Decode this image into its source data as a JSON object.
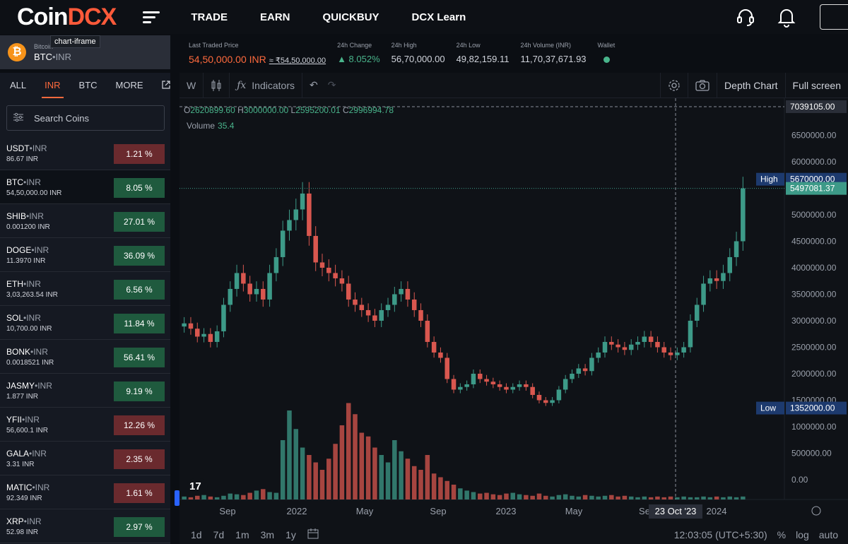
{
  "brand": {
    "logo_a": "Coin",
    "logo_b": "DCX",
    "accent": "#ff5a3a"
  },
  "nav": {
    "items": [
      "TRADE",
      "EARN",
      "QUICKBUY",
      "DCX Learn"
    ]
  },
  "pair": {
    "sub": "Bitcoin",
    "base": "BTC",
    "quote": "INR",
    "tooltip": "chart-iframe"
  },
  "ticker": {
    "ltp_label": "Last Traded Price",
    "ltp": "54,50,000.00 INR",
    "ltp_approx": "≈ ₹54,50,000.00",
    "change_label": "24h Change",
    "change": "▲ 8.052%",
    "high_label": "24h High",
    "high": "56,70,000.00",
    "low_label": "24h Low",
    "low": "49,82,159.11",
    "volume_label": "24h Volume (INR)",
    "volume": "11,70,37,671.93",
    "wallet_label": "Wallet"
  },
  "sidebar": {
    "tabs": [
      "ALL",
      "INR",
      "BTC",
      "MORE"
    ],
    "search_placeholder": "Search Coins",
    "coins": [
      {
        "base": "USDT",
        "quote": "INR",
        "price": "86.67 INR",
        "change": "1.21 %",
        "dir": "red"
      },
      {
        "base": "BTC",
        "quote": "INR",
        "price": "54,50,000.00 INR",
        "change": "8.05 %",
        "dir": "green"
      },
      {
        "base": "SHIB",
        "quote": "INR",
        "price": "0.001200 INR",
        "change": "27.01 %",
        "dir": "green"
      },
      {
        "base": "DOGE",
        "quote": "INR",
        "price": "11.3970 INR",
        "change": "36.09 %",
        "dir": "green"
      },
      {
        "base": "ETH",
        "quote": "INR",
        "price": "3,03,263.54 INR",
        "change": "6.56 %",
        "dir": "green"
      },
      {
        "base": "SOL",
        "quote": "INR",
        "price": "10,700.00 INR",
        "change": "11.84 %",
        "dir": "green"
      },
      {
        "base": "BONK",
        "quote": "INR",
        "price": "0.0018521 INR",
        "change": "56.41 %",
        "dir": "green"
      },
      {
        "base": "JASMY",
        "quote": "INR",
        "price": "1.877 INR",
        "change": "9.19 %",
        "dir": "green"
      },
      {
        "base": "YFII",
        "quote": "INR",
        "price": "56,600.1 INR",
        "change": "12.26 %",
        "dir": "red"
      },
      {
        "base": "GALA",
        "quote": "INR",
        "price": "3.31 INR",
        "change": "2.35 %",
        "dir": "red"
      },
      {
        "base": "MATIC",
        "quote": "INR",
        "price": "92.349 INR",
        "change": "1.61 %",
        "dir": "red"
      },
      {
        "base": "XRP",
        "quote": "INR",
        "price": "52.98 INR",
        "change": "2.97 %",
        "dir": "green"
      }
    ]
  },
  "toolbar": {
    "interval": "W",
    "indicators": "Indicators",
    "depth": "Depth Chart",
    "fullscreen": "Full screen"
  },
  "legend": {
    "o": "2620899.60",
    "h": "3000000.00",
    "l": "2595200.01",
    "c": "2996994.78",
    "volume_label": "Volume",
    "volume": "35.4"
  },
  "bottom": {
    "ranges": [
      "1d",
      "7d",
      "1m",
      "3m",
      "1y"
    ],
    "time": "12:03:05 (UTC+5:30)",
    "opts": [
      "%",
      "log",
      "auto"
    ]
  },
  "chart_data": {
    "type": "candlestick",
    "y_ticks": [
      "6500000.00",
      "6000000.00",
      "5500000.00",
      "5000000.00",
      "4500000.00",
      "4000000.00",
      "3500000.00",
      "3000000.00",
      "2500000.00",
      "2000000.00",
      "1500000.00",
      "1000000.00",
      "500000.00",
      "0.00"
    ],
    "ylim": [
      0,
      7039105
    ],
    "x_ticks": [
      "Sep",
      "2022",
      "May",
      "Sep",
      "2023",
      "May",
      "Se",
      "2024"
    ],
    "crosshair_price": "7039105.00",
    "crosshair_date": "23 Oct '23",
    "high_label": "High",
    "high_value": "5670000.00",
    "last_value": "5497081.37",
    "low_label": "Low",
    "low_value": "1352000.00",
    "close_series": [
      2950000,
      2850000,
      2700000,
      2750000,
      2600000,
      2800000,
      3300000,
      3600000,
      3900000,
      3700000,
      3500000,
      3600000,
      3400000,
      3900000,
      4200000,
      4700000,
      4900000,
      5100000,
      5400000,
      4600000,
      4100000,
      4000000,
      3900000,
      3800000,
      3700000,
      3400000,
      3300000,
      3200000,
      3100000,
      3000000,
      3200000,
      3300000,
      3500000,
      3600000,
      3400000,
      3200000,
      3000000,
      2600000,
      2400000,
      2300000,
      1900000,
      1700000,
      1750000,
      1800000,
      2000000,
      1900000,
      1850000,
      1800000,
      1750000,
      1700000,
      1750000,
      1800000,
      1750000,
      1600000,
      1500000,
      1450000,
      1500000,
      1700000,
      1900000,
      2000000,
      2100000,
      2050000,
      2300000,
      2400000,
      2600000,
      2550000,
      2500000,
      2450000,
      2550000,
      2600000,
      2700000,
      2600000,
      2500000,
      2400000,
      2350000,
      2400000,
      2500000,
      3000000,
      3300000,
      3700000,
      3800000,
      3750000,
      3900000,
      4200000,
      4500000,
      5497081
    ],
    "volume_series": [
      4,
      3,
      5,
      6,
      4,
      3,
      5,
      8,
      7,
      6,
      9,
      12,
      14,
      10,
      9,
      80,
      120,
      95,
      70,
      60,
      50,
      40,
      55,
      75,
      100,
      130,
      115,
      90,
      85,
      70,
      60,
      50,
      80,
      65,
      55,
      45,
      40,
      60,
      35,
      30,
      25,
      20,
      15,
      12,
      10,
      8,
      9,
      7,
      6,
      8,
      9,
      7,
      6,
      5,
      8,
      5,
      4,
      6,
      7,
      5,
      4,
      6,
      5,
      4,
      5,
      6,
      4,
      5,
      4,
      3,
      4,
      3,
      4,
      3,
      4,
      3,
      4,
      3,
      3,
      4,
      3,
      4,
      3,
      4,
      3,
      4
    ]
  }
}
